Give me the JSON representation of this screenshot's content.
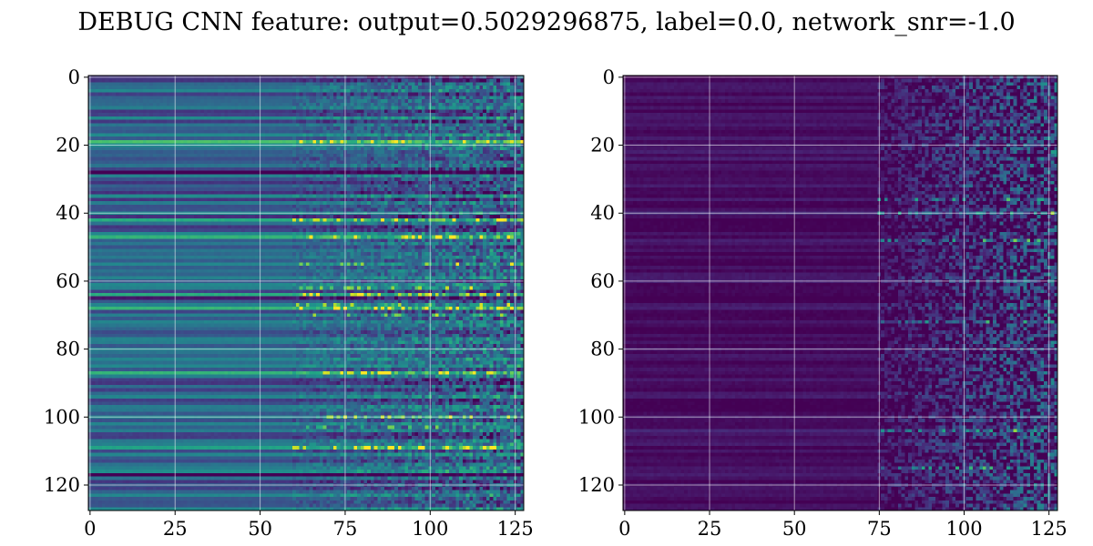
{
  "figure": {
    "title": "DEBUG CNN feature: output=0.5029296875, label=0.0, network_snr=-1.0"
  },
  "chart_data": [
    {
      "type": "heatmap",
      "panel": "left",
      "colormap": "viridis",
      "grid": true,
      "xlim": [
        -0.5,
        127.5
      ],
      "ylim": [
        127.5,
        -0.5
      ],
      "shape": [
        128,
        128
      ],
      "x_ticks": [
        0,
        25,
        50,
        75,
        100,
        125
      ],
      "y_ticks": [
        0,
        20,
        40,
        60,
        80,
        100,
        120
      ],
      "x_tick_labels": [
        "0",
        "25",
        "50",
        "75",
        "100",
        "125"
      ],
      "y_tick_labels": [
        "0",
        "20",
        "40",
        "60",
        "80",
        "100",
        "120"
      ],
      "value_range": [
        0,
        1
      ],
      "base_level": 0.32,
      "row_contrast": 0.17,
      "noise_onset_column": 60,
      "noise_strength": 0.18,
      "bright_rows": [
        19,
        42,
        47,
        55,
        62,
        64,
        67,
        68,
        70,
        87,
        100,
        103,
        109
      ],
      "dark_rows": [
        11,
        28,
        34,
        41,
        44,
        62,
        65,
        67,
        90,
        103,
        105,
        117,
        124
      ]
    },
    {
      "type": "heatmap",
      "panel": "right",
      "colormap": "viridis",
      "grid": true,
      "xlim": [
        -0.5,
        127.5
      ],
      "ylim": [
        127.5,
        -0.5
      ],
      "shape": [
        128,
        128
      ],
      "x_ticks": [
        0,
        25,
        50,
        75,
        100,
        125
      ],
      "y_ticks": [
        0,
        20,
        40,
        60,
        80,
        100,
        120
      ],
      "x_tick_labels": [
        "0",
        "25",
        "50",
        "75",
        "100",
        "125"
      ],
      "y_tick_labels": [
        "0",
        "20",
        "40",
        "60",
        "80",
        "100",
        "120"
      ],
      "value_range": [
        0,
        1
      ],
      "base_level": 0.04,
      "row_contrast": 0.05,
      "noise_onset_column": 75,
      "noise_strength": 0.25,
      "bright_rows": [
        36,
        40,
        48,
        72,
        104,
        115
      ],
      "dark_rows": []
    }
  ]
}
